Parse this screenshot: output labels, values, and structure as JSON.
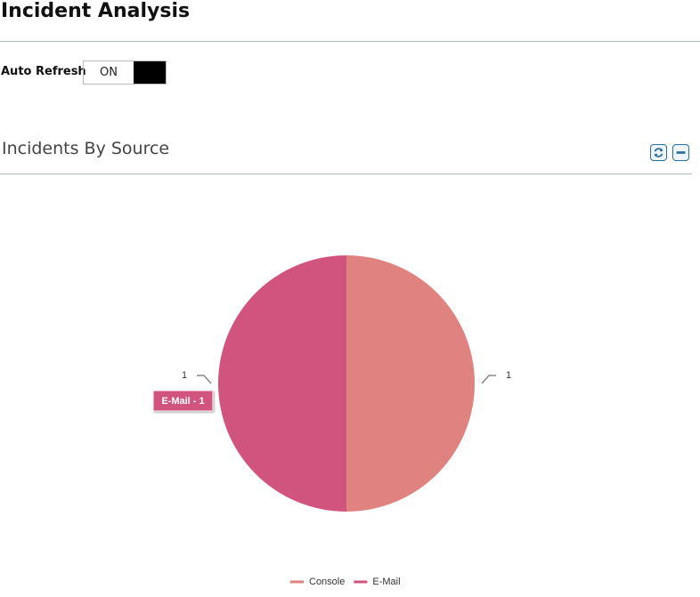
{
  "header": {
    "title": "Incident Analysis"
  },
  "auto_refresh": {
    "label": "Auto Refresh",
    "state": "ON"
  },
  "panel": {
    "title": "Incidents By Source"
  },
  "chart_data": {
    "type": "pie",
    "categories": [
      "Console",
      "E-Mail"
    ],
    "values": [
      1,
      1
    ],
    "colors": [
      "#e0827f",
      "#d1547e"
    ],
    "tooltip": "E-Mail - 1"
  }
}
